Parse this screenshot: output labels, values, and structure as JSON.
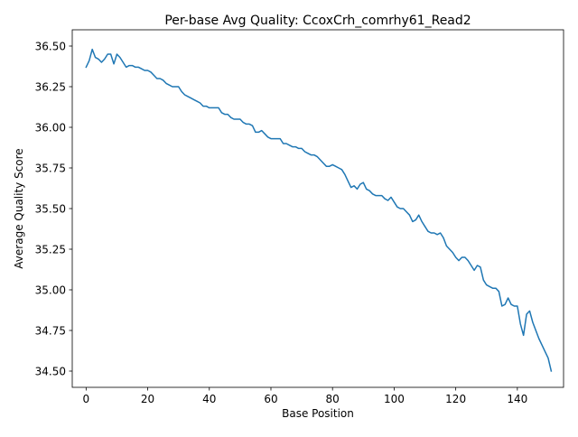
{
  "chart_data": {
    "type": "line",
    "title": "Per-base Avg Quality: CcoxCrh_comrhy61_Read2",
    "xlabel": "Base Position",
    "ylabel": "Average Quality Score",
    "xlim": [
      -4.5,
      155
    ],
    "ylim": [
      34.4,
      36.6
    ],
    "xticks": [
      0,
      20,
      40,
      60,
      80,
      100,
      120,
      140
    ],
    "xtick_labels": [
      "0",
      "20",
      "40",
      "60",
      "80",
      "100",
      "120",
      "140"
    ],
    "yticks": [
      34.5,
      34.75,
      35.0,
      35.25,
      35.5,
      35.75,
      36.0,
      36.25,
      36.5
    ],
    "ytick_labels": [
      "34.50",
      "34.75",
      "35.00",
      "35.25",
      "35.50",
      "35.75",
      "36.00",
      "36.25",
      "36.50"
    ],
    "grid": false,
    "series": [
      {
        "color": "#1f77b4",
        "values": [
          36.37,
          36.41,
          36.48,
          36.43,
          36.42,
          36.4,
          36.42,
          36.45,
          36.45,
          36.39,
          36.45,
          36.43,
          36.4,
          36.37,
          36.38,
          36.38,
          36.37,
          36.37,
          36.36,
          36.35,
          36.35,
          36.34,
          36.32,
          36.3,
          36.3,
          36.29,
          36.27,
          36.26,
          36.25,
          36.25,
          36.25,
          36.22,
          36.2,
          36.19,
          36.18,
          36.17,
          36.16,
          36.15,
          36.13,
          36.13,
          36.12,
          36.12,
          36.12,
          36.12,
          36.09,
          36.08,
          36.08,
          36.06,
          36.05,
          36.05,
          36.05,
          36.03,
          36.02,
          36.02,
          36.01,
          35.97,
          35.97,
          35.98,
          35.96,
          35.94,
          35.93,
          35.93,
          35.93,
          35.93,
          35.9,
          35.9,
          35.89,
          35.88,
          35.88,
          35.87,
          35.87,
          35.85,
          35.84,
          35.83,
          35.83,
          35.82,
          35.8,
          35.78,
          35.76,
          35.76,
          35.77,
          35.76,
          35.75,
          35.74,
          35.71,
          35.67,
          35.63,
          35.64,
          35.62,
          35.65,
          35.66,
          35.62,
          35.61,
          35.59,
          35.58,
          35.58,
          35.58,
          35.56,
          35.55,
          35.57,
          35.54,
          35.51,
          35.5,
          35.5,
          35.48,
          35.46,
          35.42,
          35.43,
          35.46,
          35.42,
          35.39,
          35.36,
          35.35,
          35.35,
          35.34,
          35.35,
          35.32,
          35.27,
          35.25,
          35.23,
          35.2,
          35.18,
          35.2,
          35.2,
          35.18,
          35.15,
          35.12,
          35.15,
          35.14,
          35.06,
          35.03,
          35.02,
          35.01,
          35.01,
          34.99,
          34.9,
          34.91,
          34.95,
          34.91,
          34.9,
          34.9,
          34.79,
          34.72,
          34.85,
          34.87,
          34.8,
          34.75,
          34.7,
          34.66,
          34.62,
          34.58,
          34.5
        ]
      }
    ]
  }
}
